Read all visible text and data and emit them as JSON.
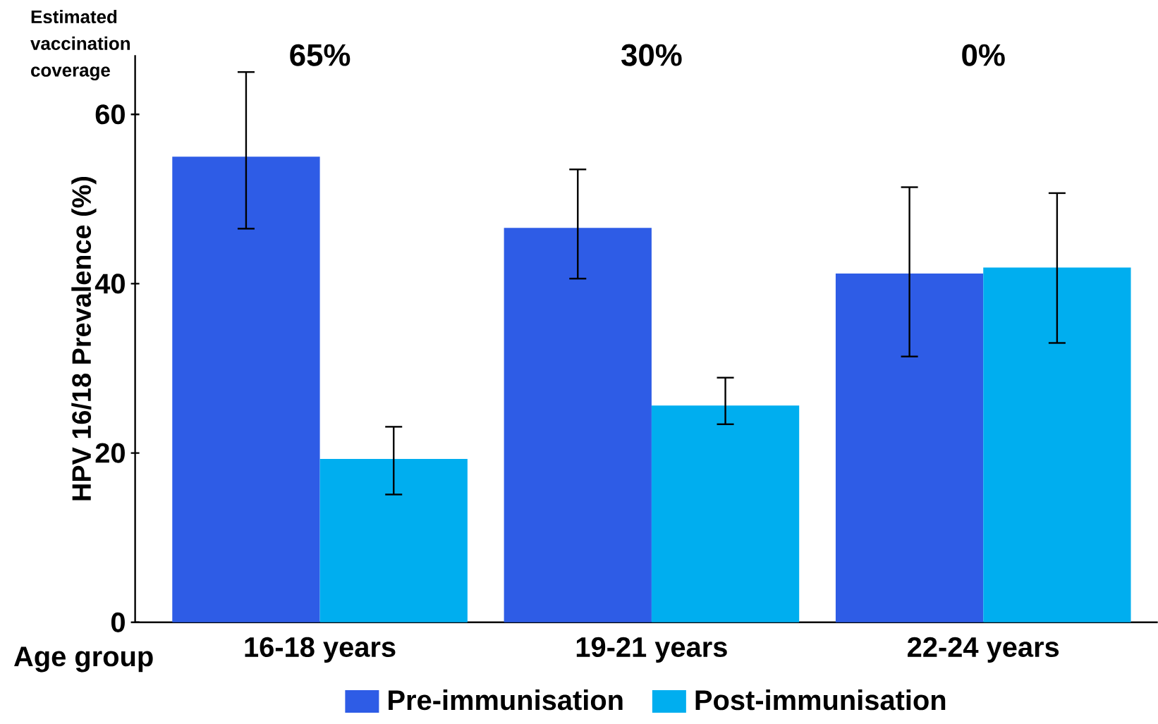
{
  "chart_data": {
    "type": "bar",
    "ylabel": "HPV 16/18 Prevalence (%)",
    "xlabel": "Age group",
    "categories": [
      "16-18 years",
      "19-21 years",
      "22-24 years"
    ],
    "series": [
      {
        "name": "Pre-immunisation",
        "color": "#2e5ce6",
        "values": [
          55.0,
          46.6,
          41.2
        ],
        "errors": [
          [
            46.5,
            65.0
          ],
          [
            40.6,
            53.5
          ],
          [
            31.4,
            51.4
          ]
        ]
      },
      {
        "name": "Post-immunisation",
        "color": "#00aeef",
        "values": [
          19.3,
          25.6,
          41.9
        ],
        "errors": [
          [
            15.1,
            23.1
          ],
          [
            23.4,
            28.9
          ],
          [
            33.0,
            50.7
          ]
        ]
      }
    ],
    "ylim": [
      0,
      67
    ],
    "yticks": [
      0,
      20,
      40,
      60
    ],
    "grid": false,
    "legend": "bottom",
    "annotations": [
      "Estimated vaccination coverage",
      "65%",
      "30%",
      "0%"
    ]
  }
}
